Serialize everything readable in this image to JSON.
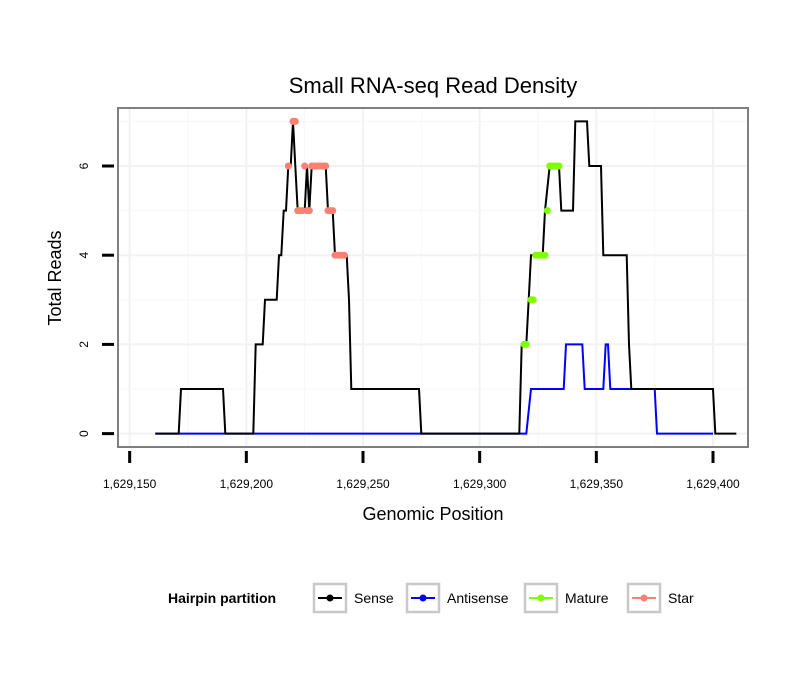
{
  "chart_data": {
    "type": "line",
    "title": "Small RNA-seq Read Density",
    "xlabel": "Genomic Position",
    "ylabel": "Total Reads",
    "xlim": [
      1629145,
      1629415
    ],
    "ylim": [
      -0.3,
      7.3
    ],
    "x_ticks": [
      1629150,
      1629200,
      1629250,
      1629300,
      1629350,
      1629400
    ],
    "x_tick_labels": [
      "1,629,150",
      "1,629,200",
      "1,629,250",
      "1,629,300",
      "1,629,350",
      "1,629,400"
    ],
    "y_ticks": [
      0,
      2,
      4,
      6
    ],
    "y_tick_labels": [
      "0",
      "2",
      "4",
      "6"
    ],
    "grid": true,
    "legend": {
      "title": "Hairpin partition",
      "position": "bottom",
      "entries": [
        {
          "name": "Sense",
          "color": "#000000"
        },
        {
          "name": "Antisense",
          "color": "#0000ff"
        },
        {
          "name": "Mature",
          "color": "#7fff00"
        },
        {
          "name": "Star",
          "color": "#fa8072"
        }
      ]
    },
    "series": [
      {
        "name": "Sense",
        "color": "#000000",
        "step": [
          [
            1629161,
            0
          ],
          [
            1629171,
            0
          ],
          [
            1629172,
            1
          ],
          [
            1629190,
            1
          ],
          [
            1629191,
            0
          ],
          [
            1629203,
            0
          ],
          [
            1629204,
            2
          ],
          [
            1629207,
            2
          ],
          [
            1629208,
            3
          ],
          [
            1629213,
            3
          ],
          [
            1629214,
            4
          ],
          [
            1629215,
            4
          ],
          [
            1629216,
            5
          ],
          [
            1629217,
            5
          ],
          [
            1629218,
            6
          ],
          [
            1629219,
            6
          ],
          [
            1629220,
            7
          ],
          [
            1629221,
            6
          ],
          [
            1629222,
            5
          ],
          [
            1629225,
            5
          ],
          [
            1629226,
            6
          ],
          [
            1629227,
            5
          ],
          [
            1629228,
            6
          ],
          [
            1629234,
            6
          ],
          [
            1629235,
            5
          ],
          [
            1629237,
            5
          ],
          [
            1629238,
            4
          ],
          [
            1629243,
            4
          ],
          [
            1629244,
            3
          ],
          [
            1629245,
            1
          ],
          [
            1629274,
            1
          ],
          [
            1629275,
            0
          ],
          [
            1629317,
            0
          ],
          [
            1629318,
            2
          ],
          [
            1629320,
            2
          ],
          [
            1629321,
            3
          ],
          [
            1629322,
            4
          ],
          [
            1629327,
            4
          ],
          [
            1629328,
            5
          ],
          [
            1629330,
            6
          ],
          [
            1629334,
            6
          ],
          [
            1629335,
            5
          ],
          [
            1629340,
            5
          ],
          [
            1629341,
            7
          ],
          [
            1629346,
            7
          ],
          [
            1629347,
            6
          ],
          [
            1629352,
            6
          ],
          [
            1629353,
            4
          ],
          [
            1629363,
            4
          ],
          [
            1629364,
            2
          ],
          [
            1629365,
            1
          ],
          [
            1629400,
            1
          ],
          [
            1629401,
            0
          ],
          [
            1629410,
            0
          ]
        ]
      },
      {
        "name": "Antisense",
        "color": "#0000ff",
        "step": [
          [
            1629161,
            0
          ],
          [
            1629320,
            0
          ],
          [
            1629322,
            1
          ],
          [
            1629336,
            1
          ],
          [
            1629337,
            2
          ],
          [
            1629344,
            2
          ],
          [
            1629345,
            1
          ],
          [
            1629353,
            1
          ],
          [
            1629354,
            2
          ],
          [
            1629355,
            2
          ],
          [
            1629356,
            1
          ],
          [
            1629375,
            1
          ],
          [
            1629376,
            0
          ],
          [
            1629400,
            0
          ]
        ]
      },
      {
        "name": "Mature",
        "color": "#7fff00",
        "points": [
          [
            1629319,
            2
          ],
          [
            1629320,
            2
          ],
          [
            1629322,
            3
          ],
          [
            1629323,
            3
          ],
          [
            1629324,
            4
          ],
          [
            1629325,
            4
          ],
          [
            1629326,
            4
          ],
          [
            1629327,
            4
          ],
          [
            1629328,
            4
          ],
          [
            1629329,
            5
          ],
          [
            1629330,
            6
          ],
          [
            1629331,
            6
          ],
          [
            1629332,
            6
          ],
          [
            1629333,
            6
          ],
          [
            1629334,
            6
          ]
        ]
      },
      {
        "name": "Star",
        "color": "#fa8072",
        "points": [
          [
            1629218,
            6
          ],
          [
            1629220,
            7
          ],
          [
            1629221,
            7
          ],
          [
            1629222,
            5
          ],
          [
            1629223,
            5
          ],
          [
            1629224,
            5
          ],
          [
            1629225,
            6
          ],
          [
            1629226,
            5
          ],
          [
            1629227,
            5
          ],
          [
            1629228,
            6
          ],
          [
            1629229,
            6
          ],
          [
            1629230,
            6
          ],
          [
            1629231,
            6
          ],
          [
            1629232,
            6
          ],
          [
            1629233,
            6
          ],
          [
            1629234,
            6
          ],
          [
            1629235,
            5
          ],
          [
            1629236,
            5
          ],
          [
            1629237,
            5
          ],
          [
            1629238,
            4
          ],
          [
            1629239,
            4
          ],
          [
            1629240,
            4
          ],
          [
            1629241,
            4
          ],
          [
            1629242,
            4
          ]
        ]
      }
    ]
  }
}
